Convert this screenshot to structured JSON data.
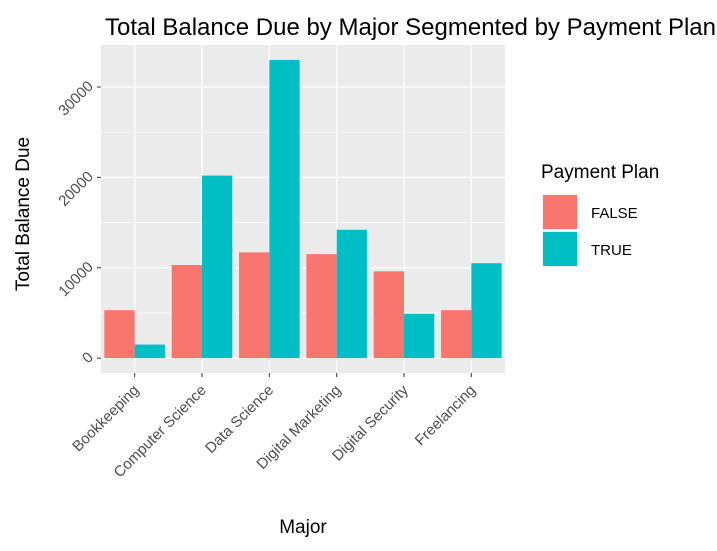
{
  "chart_data": {
    "type": "bar",
    "title": "Total Balance Due by Major Segmented by Payment Plan",
    "xlabel": "Major",
    "ylabel": "Total Balance Due",
    "categories": [
      "Bookkeeping",
      "Computer Science",
      "Data Science",
      "Digital Marketing",
      "Digital Security",
      "Freelancing"
    ],
    "series": [
      {
        "name": "FALSE",
        "color": "#f8766d",
        "values": [
          5300,
          10300,
          11700,
          11500,
          9600,
          5300
        ]
      },
      {
        "name": "TRUE",
        "color": "#00bfc4",
        "values": [
          1500,
          20200,
          33000,
          14200,
          4900,
          10500
        ]
      }
    ],
    "ylim": [
      -1650,
      34650
    ],
    "yticks": [
      0,
      10000,
      20000,
      30000
    ],
    "ytick_labels": [
      "0",
      "10000",
      "20000",
      "30000"
    ],
    "grid": true,
    "legend": {
      "title": "Payment Plan",
      "position": "right",
      "entries": [
        "FALSE",
        "TRUE"
      ]
    }
  }
}
